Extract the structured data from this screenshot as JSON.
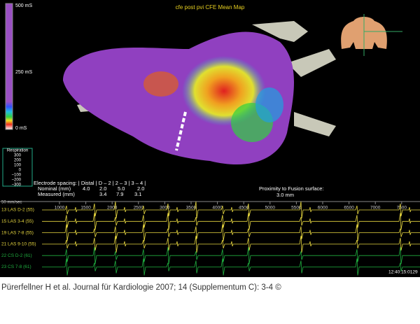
{
  "screen": {
    "title": "cfe post pvi CFE Mean Map",
    "color_scale": [
      "500 mS",
      "250 mS",
      "0 mS"
    ],
    "respiration": {
      "label": "Respiration",
      "ticks": [
        "300",
        "200",
        "100",
        "0",
        "−100",
        "−200",
        "−300"
      ]
    },
    "electrode_table": {
      "header": "Electrode spacing: | Distal | D – 2 | 2 – 3 | 3 – 4 |",
      "nominal": [
        "Nominal (mm)",
        "4.0",
        "2.0",
        "5.0",
        "2.0"
      ],
      "measured": [
        "Measured (mm)",
        "3.4",
        "7.9",
        "3.1"
      ]
    },
    "proximity": {
      "label": "Proximity to Fusion surface:",
      "value": "3.0 mm"
    },
    "time_axis": {
      "speed": "50 mm/sec",
      "ticks": [
        "1000",
        "1500",
        "2000",
        "2500",
        "3000",
        "3500",
        "4000",
        "4500",
        "5000",
        "5500",
        "6000",
        "6500",
        "7000",
        "7500"
      ]
    },
    "channels": [
      "13 LAS D-2 (55)",
      "15 LAS 3-4 (55)",
      "19 LAS 7-8 (55)",
      "21 LAS 9-10 (55)",
      "22 CS D-2 (61)",
      "23 CS 7-8 (61)"
    ],
    "timestamp": "12:40:15:0129"
  },
  "caption": "Pürerfellner H et al. Journal für Kardiologie 2007; 14 (Supplementum C): 3-4 ©"
}
